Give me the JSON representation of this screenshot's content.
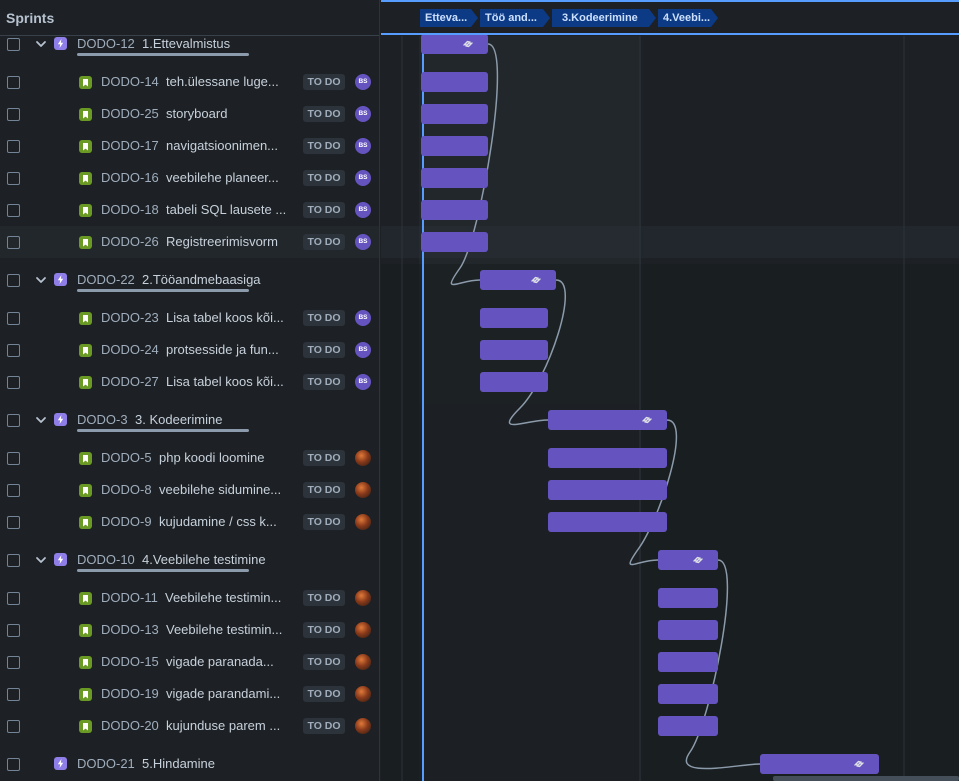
{
  "panel_title": "Sprints",
  "sprint_chips": [
    {
      "label": "Etteva..."
    },
    {
      "label": "Töö and..."
    },
    {
      "label": "3.Kodeerimine"
    },
    {
      "label": "4.Veebi..."
    }
  ],
  "rows": [
    {
      "type": "epic",
      "key": "DODO-12",
      "summary": "1.Ettevalmistus",
      "expanded": true
    },
    {
      "type": "story",
      "key": "DODO-14",
      "summary": "teh.ülessane luge...",
      "status": "TO DO",
      "assignee": "BS"
    },
    {
      "type": "story",
      "key": "DODO-25",
      "summary": "storyboard",
      "status": "TO DO",
      "assignee": "BS"
    },
    {
      "type": "story",
      "key": "DODO-17",
      "summary": "navigatsioonimen...",
      "status": "TO DO",
      "assignee": "BS"
    },
    {
      "type": "story",
      "key": "DODO-16",
      "summary": "veebilehe planeer...",
      "status": "TO DO",
      "assignee": "BS"
    },
    {
      "type": "story",
      "key": "DODO-18",
      "summary": "tabeli SQL lausete ...",
      "status": "TO DO",
      "assignee": "BS"
    },
    {
      "type": "story",
      "key": "DODO-26",
      "summary": "Registreerimisvorm",
      "status": "TO DO",
      "assignee": "BS"
    },
    {
      "type": "epic",
      "key": "DODO-22",
      "summary": "2.Tööandmebaasiga",
      "expanded": true
    },
    {
      "type": "story",
      "key": "DODO-23",
      "summary": "Lisa tabel koos kõi...",
      "status": "TO DO",
      "assignee": "BS"
    },
    {
      "type": "story",
      "key": "DODO-24",
      "summary": "protsesside ja fun...",
      "status": "TO DO",
      "assignee": "BS"
    },
    {
      "type": "story",
      "key": "DODO-27",
      "summary": "Lisa tabel koos kõi...",
      "status": "TO DO",
      "assignee": "BS"
    },
    {
      "type": "epic",
      "key": "DODO-3",
      "summary": "3. Kodeerimine",
      "expanded": true
    },
    {
      "type": "story",
      "key": "DODO-5",
      "summary": "php koodi loomine",
      "status": "TO DO",
      "assignee": "photo"
    },
    {
      "type": "story",
      "key": "DODO-8",
      "summary": "veebilehe sidumine...",
      "status": "TO DO",
      "assignee": "photo"
    },
    {
      "type": "story",
      "key": "DODO-9",
      "summary": "kujudamine / css k...",
      "status": "TO DO",
      "assignee": "photo"
    },
    {
      "type": "epic",
      "key": "DODO-10",
      "summary": "4.Veebilehe testimine",
      "expanded": true
    },
    {
      "type": "story",
      "key": "DODO-11",
      "summary": "Veebilehe testimin...",
      "status": "TO DO",
      "assignee": "photo"
    },
    {
      "type": "story",
      "key": "DODO-13",
      "summary": "Veebilehe testimin...",
      "status": "TO DO",
      "assignee": "photo"
    },
    {
      "type": "story",
      "key": "DODO-15",
      "summary": "vigade paranada...",
      "status": "TO DO",
      "assignee": "photo"
    },
    {
      "type": "story",
      "key": "DODO-19",
      "summary": "vigade parandami...",
      "status": "TO DO",
      "assignee": "photo"
    },
    {
      "type": "story",
      "key": "DODO-20",
      "summary": "kujunduse parem ...",
      "status": "TO DO",
      "assignee": "photo"
    },
    {
      "type": "epic",
      "key": "DODO-21",
      "summary": "5.Hindamine",
      "expanded": false
    }
  ],
  "colors": {
    "bar": "#6554c0",
    "today_line": "#579dff",
    "chip": "#0c3a85",
    "dependency": "#8c9bab"
  },
  "icons": {
    "epic": "lightning-icon",
    "story": "bookmark-icon",
    "expand": "chevron-down-icon",
    "link": "link-icon"
  }
}
